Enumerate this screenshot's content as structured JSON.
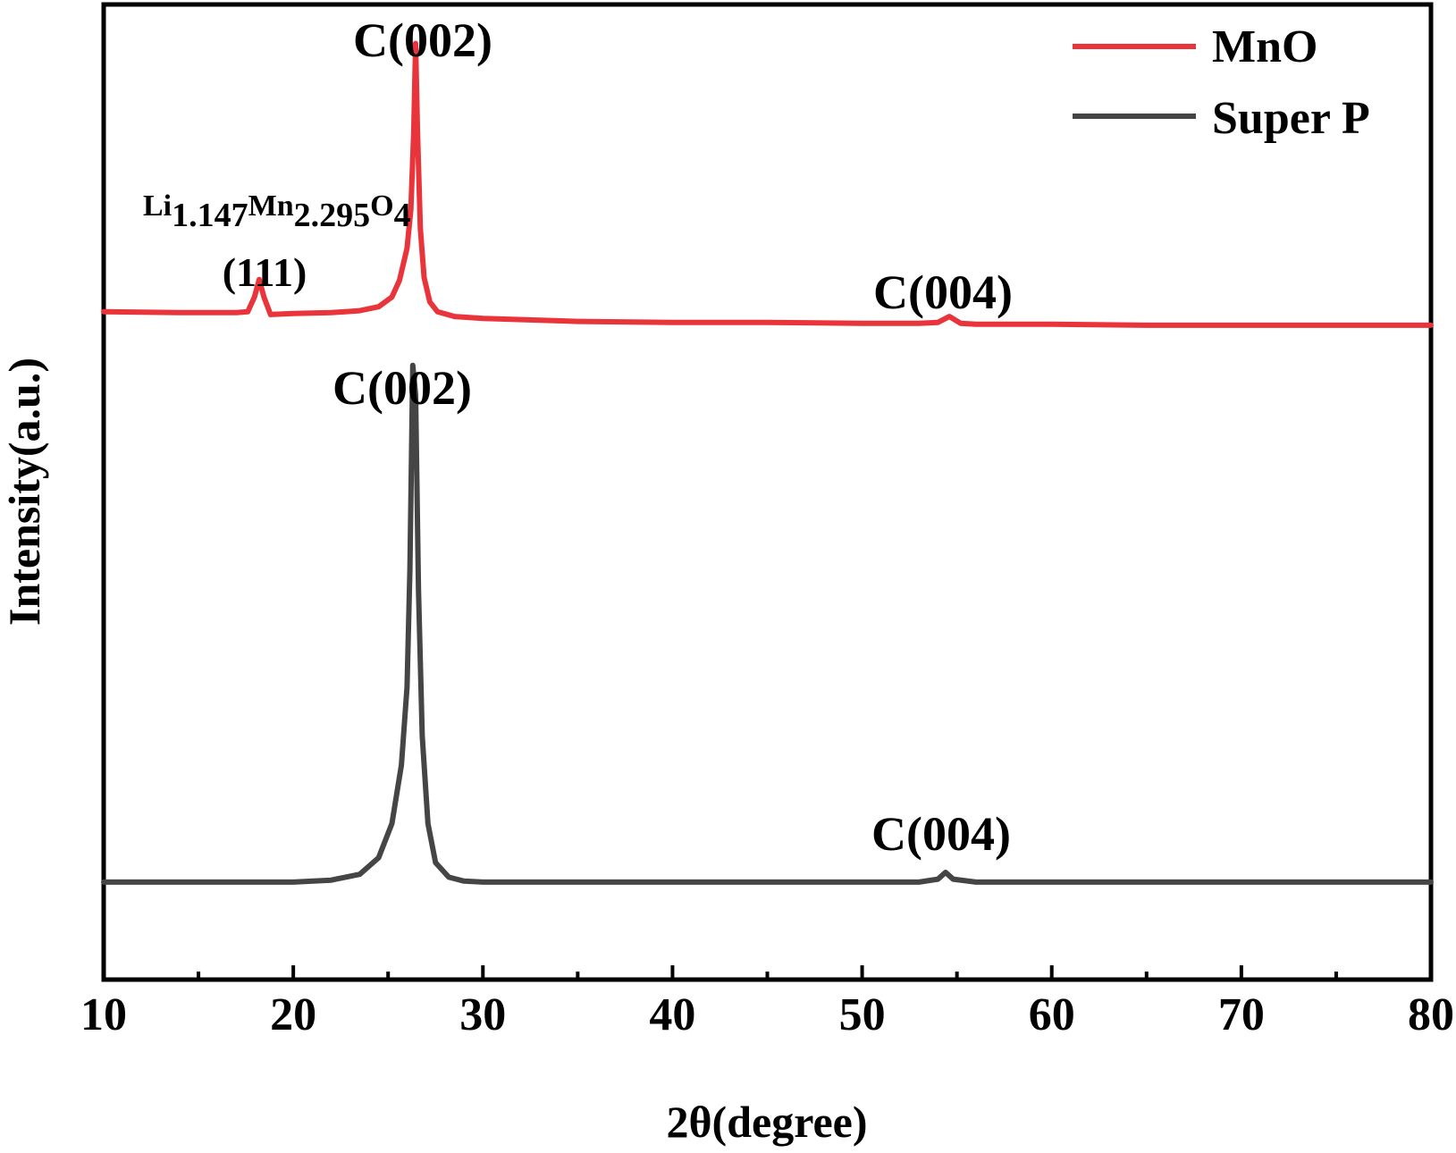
{
  "chart_data": {
    "type": "line",
    "xlabel": "2θ(degree)",
    "ylabel": "Intensity(a.u.)",
    "xlim": [
      10,
      80
    ],
    "ylim": [
      0,
      1
    ],
    "x_ticks": [
      "10",
      "20",
      "30",
      "40",
      "50",
      "60",
      "70",
      "80"
    ],
    "grid": false,
    "legend_position": "top-right",
    "colors": {
      "MnO": "#e8343a",
      "Super P": "#454545",
      "axis": "#000000"
    },
    "series": [
      {
        "name": "MnO",
        "x": [
          10,
          14,
          17,
          17.6,
          17.95,
          18.2,
          18.45,
          18.8,
          20,
          22,
          23.5,
          24.5,
          25.2,
          25.6,
          26.0,
          26.2,
          26.35,
          26.45,
          26.55,
          26.7,
          26.9,
          27.2,
          27.6,
          28.5,
          30,
          35,
          40,
          45,
          50,
          53,
          54,
          54.6,
          55.2,
          56,
          60,
          65,
          70,
          75,
          80
        ],
        "y": [
          0.685,
          0.684,
          0.684,
          0.685,
          0.7,
          0.718,
          0.7,
          0.682,
          0.683,
          0.684,
          0.686,
          0.69,
          0.7,
          0.717,
          0.75,
          0.79,
          0.87,
          0.96,
          0.87,
          0.77,
          0.72,
          0.695,
          0.685,
          0.68,
          0.678,
          0.675,
          0.674,
          0.674,
          0.673,
          0.673,
          0.674,
          0.68,
          0.673,
          0.672,
          0.672,
          0.671,
          0.671,
          0.671,
          0.671
        ]
      },
      {
        "name": "Super P",
        "x": [
          10,
          15,
          20,
          22,
          23.5,
          24.5,
          25.2,
          25.7,
          26.0,
          26.15,
          26.3,
          26.45,
          26.6,
          26.8,
          27.1,
          27.5,
          28.2,
          29,
          30,
          35,
          40,
          45,
          50,
          53,
          54,
          54.4,
          54.8,
          56,
          60,
          65,
          70,
          75,
          80
        ],
        "y": [
          0.1,
          0.1,
          0.1,
          0.102,
          0.108,
          0.125,
          0.16,
          0.22,
          0.3,
          0.42,
          0.63,
          0.6,
          0.4,
          0.25,
          0.16,
          0.12,
          0.105,
          0.101,
          0.1,
          0.1,
          0.1,
          0.1,
          0.1,
          0.1,
          0.103,
          0.11,
          0.103,
          0.1,
          0.1,
          0.1,
          0.1,
          0.1,
          0.1
        ]
      }
    ],
    "annotations": [
      {
        "id": "mno_c002",
        "series": "MnO",
        "text": "C(002)",
        "x": 26.45
      },
      {
        "id": "mno_li_phase",
        "series": "MnO",
        "text": "Li1.147Mn2.295O4",
        "x": 18.2
      },
      {
        "id": "mno_111",
        "series": "MnO",
        "text": "(111)",
        "x": 18.2
      },
      {
        "id": "mno_c004",
        "series": "MnO",
        "text": "C(004)",
        "x": 54.6
      },
      {
        "id": "sp_c002",
        "series": "Super P",
        "text": "C(002)",
        "x": 26.3
      },
      {
        "id": "sp_c004",
        "series": "Super P",
        "text": "C(004)",
        "x": 54.4
      }
    ],
    "formula": {
      "li": "Li",
      "li_sub": "1.147",
      "mn": "Mn",
      "mn_sub": "2.295",
      "o": "O",
      "o_sub": "4"
    }
  }
}
